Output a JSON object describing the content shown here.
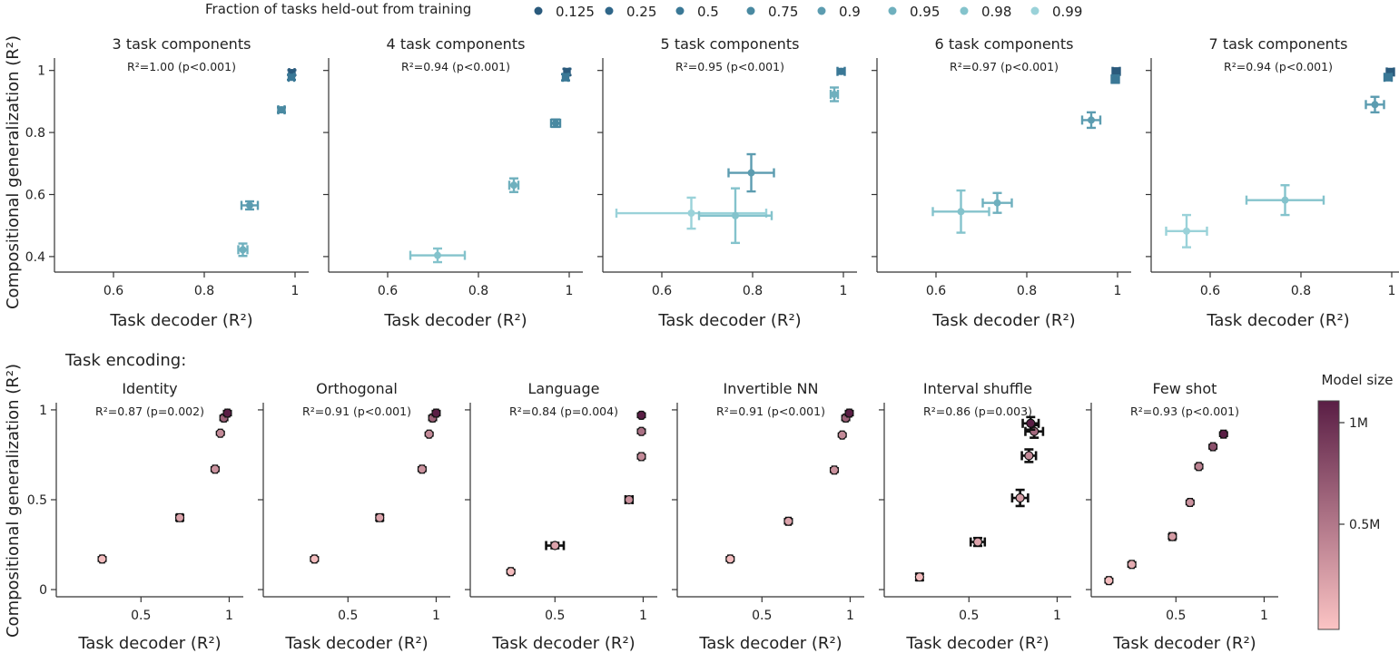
{
  "legend": {
    "title": "Fraction of tasks held-out from training",
    "items": [
      {
        "label": "0.125",
        "color": "#2a5a7c"
      },
      {
        "label": "0.25",
        "color": "#2f6689"
      },
      {
        "label": "0.5",
        "color": "#3a7896"
      },
      {
        "label": "0.75",
        "color": "#4989a1"
      },
      {
        "label": "0.9",
        "color": "#5c9cb0"
      },
      {
        "label": "0.95",
        "color": "#6fb0be"
      },
      {
        "label": "0.98",
        "color": "#84c3cc"
      },
      {
        "label": "0.99",
        "color": "#9ad2d9"
      }
    ]
  },
  "shared": {
    "xlabel": "Task decoder (R²)",
    "ylabel": "Compositional generalization (R²)"
  },
  "section_label": "Task encoding:",
  "colorbar": {
    "title": "Model size",
    "tick_1m": "1M",
    "tick_05m": "0.5M",
    "color_low": "#fcc4c4",
    "color_high": "#5a1e45"
  },
  "chart_data": [
    {
      "type": "scatter",
      "title": "3 task components",
      "annotation": "R²=1.00 (p<0.001)",
      "xlim": [
        0.47,
        1.03
      ],
      "ylim": [
        0.35,
        1.04
      ],
      "xticks": [
        0.6,
        0.8,
        1
      ],
      "xtick_labels": [
        "0.6",
        "0.8",
        "1"
      ],
      "yticks": [
        0.4,
        0.6,
        0.8,
        1
      ],
      "ytick_labels": [
        "0.4",
        "0.6",
        "0.8",
        "1"
      ],
      "points": [
        {
          "x": 0.993,
          "y": 0.993,
          "xerr": 0.006,
          "yerr": 0.008,
          "color": "#2a5a7c"
        },
        {
          "x": 0.992,
          "y": 0.978,
          "xerr": 0.006,
          "yerr": 0.008,
          "color": "#3a7896"
        },
        {
          "x": 0.97,
          "y": 0.873,
          "xerr": 0.007,
          "yerr": 0.008,
          "color": "#4989a1"
        },
        {
          "x": 0.9,
          "y": 0.565,
          "xerr": 0.018,
          "yerr": 0.013,
          "color": "#5c9cb0"
        },
        {
          "x": 0.885,
          "y": 0.422,
          "xerr": 0.01,
          "yerr": 0.02,
          "color": "#6fb0be"
        }
      ]
    },
    {
      "type": "scatter",
      "title": "4 task components",
      "annotation": "R²=0.94 (p<0.001)",
      "xlim": [
        0.47,
        1.03
      ],
      "ylim": [
        0.35,
        1.04
      ],
      "xticks": [
        0.6,
        0.8,
        1
      ],
      "xtick_labels": [
        "0.6",
        "0.8",
        "1"
      ],
      "yticks": [
        0.4,
        0.6,
        0.8,
        1
      ],
      "ytick_labels": [
        "0.4",
        "0.6",
        "0.8",
        "1"
      ],
      "points": [
        {
          "x": 0.995,
          "y": 0.995,
          "xerr": 0.006,
          "yerr": 0.01,
          "color": "#2a5a7c"
        },
        {
          "x": 0.992,
          "y": 0.978,
          "xerr": 0.006,
          "yerr": 0.01,
          "color": "#3a7896"
        },
        {
          "x": 0.97,
          "y": 0.83,
          "xerr": 0.01,
          "yerr": 0.012,
          "color": "#4989a1"
        },
        {
          "x": 0.878,
          "y": 0.63,
          "xerr": 0.01,
          "yerr": 0.022,
          "color": "#6fb0be"
        },
        {
          "x": 0.71,
          "y": 0.404,
          "xerr": 0.06,
          "yerr": 0.022,
          "color": "#84c3cc"
        }
      ]
    },
    {
      "type": "scatter",
      "title": "5 task components",
      "annotation": "R²=0.95 (p<0.001)",
      "xlim": [
        0.47,
        1.03
      ],
      "ylim": [
        0.35,
        1.04
      ],
      "xticks": [
        0.6,
        0.8,
        1
      ],
      "xtick_labels": [
        "0.6",
        "0.8",
        "1"
      ],
      "yticks": [
        0.4,
        0.6,
        0.8,
        1
      ],
      "ytick_labels": [
        "0.4",
        "0.6",
        "0.8",
        "1"
      ],
      "points": [
        {
          "x": 0.995,
          "y": 0.997,
          "xerr": 0.008,
          "yerr": 0.008,
          "color": "#3a7896"
        },
        {
          "x": 0.98,
          "y": 0.923,
          "xerr": 0.008,
          "yerr": 0.022,
          "color": "#6fb0be"
        },
        {
          "x": 0.797,
          "y": 0.67,
          "xerr": 0.05,
          "yerr": 0.06,
          "color": "#5c9cb0"
        },
        {
          "x": 0.665,
          "y": 0.54,
          "xerr": 0.165,
          "yerr": 0.05,
          "color": "#9ad2d9"
        },
        {
          "x": 0.762,
          "y": 0.532,
          "xerr": 0.08,
          "yerr": 0.088,
          "color": "#84c3cc"
        }
      ]
    },
    {
      "type": "scatter",
      "title": "6 task components",
      "annotation": "R²=0.97 (p<0.001)",
      "xlim": [
        0.47,
        1.03
      ],
      "ylim": [
        0.35,
        1.04
      ],
      "xticks": [
        0.6,
        0.8,
        1
      ],
      "xtick_labels": [
        "0.6",
        "0.8",
        "1"
      ],
      "yticks": [
        0.4,
        0.6,
        0.8,
        1
      ],
      "ytick_labels": [
        "0.4",
        "0.6",
        "0.8",
        "1"
      ],
      "points": [
        {
          "x": 0.997,
          "y": 0.997,
          "xerr": 0.008,
          "yerr": 0.01,
          "color": "#2a5a7c"
        },
        {
          "x": 0.995,
          "y": 0.972,
          "xerr": 0.008,
          "yerr": 0.012,
          "color": "#3a7896"
        },
        {
          "x": 0.942,
          "y": 0.84,
          "xerr": 0.02,
          "yerr": 0.025,
          "color": "#5c9cb0"
        },
        {
          "x": 0.735,
          "y": 0.573,
          "xerr": 0.032,
          "yerr": 0.032,
          "color": "#6fb0be"
        },
        {
          "x": 0.655,
          "y": 0.545,
          "xerr": 0.062,
          "yerr": 0.068,
          "color": "#84c3cc"
        }
      ]
    },
    {
      "type": "scatter",
      "title": "7 task components",
      "annotation": "R²=0.94 (p<0.001)",
      "xlim": [
        0.47,
        1.03
      ],
      "ylim": [
        0.35,
        1.04
      ],
      "xticks": [
        0.6,
        0.8,
        1
      ],
      "xtick_labels": [
        "0.6",
        "0.8",
        "1"
      ],
      "yticks": [
        0.4,
        0.6,
        0.8,
        1
      ],
      "ytick_labels": [
        "0.4",
        "0.6",
        "0.8",
        "1"
      ],
      "points": [
        {
          "x": 0.997,
          "y": 0.995,
          "xerr": 0.008,
          "yerr": 0.01,
          "color": "#2a5a7c"
        },
        {
          "x": 0.992,
          "y": 0.978,
          "xerr": 0.008,
          "yerr": 0.01,
          "color": "#3a7896"
        },
        {
          "x": 0.963,
          "y": 0.89,
          "xerr": 0.02,
          "yerr": 0.025,
          "color": "#5c9cb0"
        },
        {
          "x": 0.765,
          "y": 0.582,
          "xerr": 0.085,
          "yerr": 0.048,
          "color": "#84c3cc"
        },
        {
          "x": 0.548,
          "y": 0.482,
          "xerr": 0.045,
          "yerr": 0.052,
          "color": "#9ad2d9"
        }
      ]
    },
    {
      "type": "scatter",
      "title": "Identity",
      "annotation": "R²=0.87 (p=0.002)",
      "xlim": [
        0.02,
        1.08
      ],
      "ylim": [
        -0.04,
        1.04
      ],
      "xticks": [
        0.5,
        1
      ],
      "xtick_labels": [
        "0.5",
        "1"
      ],
      "yticks": [
        0,
        0.5,
        1
      ],
      "ytick_labels": [
        "0",
        "0.5",
        "1"
      ],
      "points": [
        {
          "x": 0.28,
          "y": 0.17,
          "xerr": 0.01,
          "yerr": 0.01,
          "size": 0.05
        },
        {
          "x": 0.72,
          "y": 0.4,
          "xerr": 0.015,
          "yerr": 0.015,
          "size": 0.2
        },
        {
          "x": 0.92,
          "y": 0.67,
          "xerr": 0.01,
          "yerr": 0.01,
          "size": 0.3
        },
        {
          "x": 0.95,
          "y": 0.87,
          "xerr": 0.008,
          "yerr": 0.008,
          "size": 0.35
        },
        {
          "x": 0.97,
          "y": 0.955,
          "xerr": 0.01,
          "yerr": 0.012,
          "size": 0.6
        },
        {
          "x": 0.99,
          "y": 0.982,
          "xerr": 0.01,
          "yerr": 0.012,
          "size": 1.0
        }
      ]
    },
    {
      "type": "scatter",
      "title": "Orthogonal",
      "annotation": "R²=0.91 (p<0.001)",
      "xlim": [
        0.02,
        1.08
      ],
      "ylim": [
        -0.04,
        1.04
      ],
      "xticks": [
        0.5,
        1
      ],
      "xtick_labels": [
        "0.5",
        "1"
      ],
      "yticks": [
        0,
        0.5,
        1
      ],
      "ytick_labels": [
        "0",
        "0.5",
        "1"
      ],
      "points": [
        {
          "x": 0.31,
          "y": 0.17,
          "xerr": 0.01,
          "yerr": 0.01,
          "size": 0.05
        },
        {
          "x": 0.68,
          "y": 0.4,
          "xerr": 0.015,
          "yerr": 0.015,
          "size": 0.2
        },
        {
          "x": 0.92,
          "y": 0.67,
          "xerr": 0.01,
          "yerr": 0.01,
          "size": 0.3
        },
        {
          "x": 0.96,
          "y": 0.865,
          "xerr": 0.008,
          "yerr": 0.008,
          "size": 0.35
        },
        {
          "x": 0.98,
          "y": 0.955,
          "xerr": 0.01,
          "yerr": 0.012,
          "size": 0.6
        },
        {
          "x": 1.0,
          "y": 0.982,
          "xerr": 0.01,
          "yerr": 0.012,
          "size": 1.0
        }
      ]
    },
    {
      "type": "scatter",
      "title": "Language",
      "annotation": "R²=0.84 (p=0.004)",
      "xlim": [
        0.02,
        1.08
      ],
      "ylim": [
        -0.04,
        1.04
      ],
      "xticks": [
        0.5,
        1
      ],
      "xtick_labels": [
        "0.5",
        "1"
      ],
      "yticks": [
        0,
        0.5,
        1
      ],
      "ytick_labels": [
        "0",
        "0.5",
        "1"
      ],
      "points": [
        {
          "x": 0.25,
          "y": 0.1,
          "xerr": 0.01,
          "yerr": 0.01,
          "size": 0.05
        },
        {
          "x": 0.5,
          "y": 0.245,
          "xerr": 0.05,
          "yerr": 0.015,
          "size": 0.2
        },
        {
          "x": 0.92,
          "y": 0.5,
          "xerr": 0.02,
          "yerr": 0.015,
          "size": 0.3
        },
        {
          "x": 0.99,
          "y": 0.74,
          "xerr": 0.01,
          "yerr": 0.01,
          "size": 0.35
        },
        {
          "x": 0.99,
          "y": 0.88,
          "xerr": 0.008,
          "yerr": 0.01,
          "size": 0.5
        },
        {
          "x": 0.99,
          "y": 0.97,
          "xerr": 0.008,
          "yerr": 0.01,
          "size": 1.0
        }
      ]
    },
    {
      "type": "scatter",
      "title": "Invertible NN",
      "annotation": "R²=0.91 (p<0.001)",
      "xlim": [
        0.02,
        1.08
      ],
      "ylim": [
        -0.04,
        1.04
      ],
      "xticks": [
        0.5,
        1
      ],
      "xtick_labels": [
        "0.5",
        "1"
      ],
      "yticks": [
        0,
        0.5,
        1
      ],
      "ytick_labels": [
        "0",
        "0.5",
        "1"
      ],
      "points": [
        {
          "x": 0.32,
          "y": 0.17,
          "xerr": 0.01,
          "yerr": 0.01,
          "size": 0.05
        },
        {
          "x": 0.65,
          "y": 0.38,
          "xerr": 0.012,
          "yerr": 0.012,
          "size": 0.2
        },
        {
          "x": 0.91,
          "y": 0.665,
          "xerr": 0.01,
          "yerr": 0.01,
          "size": 0.3
        },
        {
          "x": 0.955,
          "y": 0.86,
          "xerr": 0.008,
          "yerr": 0.008,
          "size": 0.35
        },
        {
          "x": 0.975,
          "y": 0.955,
          "xerr": 0.01,
          "yerr": 0.012,
          "size": 0.6
        },
        {
          "x": 0.995,
          "y": 0.982,
          "xerr": 0.01,
          "yerr": 0.012,
          "size": 1.0
        }
      ]
    },
    {
      "type": "scatter",
      "title": "Interval shuffle",
      "annotation": "R²=0.86 (p=0.003)",
      "xlim": [
        0.02,
        1.08
      ],
      "ylim": [
        -0.04,
        1.04
      ],
      "xticks": [
        0.5,
        1
      ],
      "xtick_labels": [
        "0.5",
        "1"
      ],
      "yticks": [
        0,
        0.5,
        1
      ],
      "ytick_labels": [
        "0",
        "0.5",
        "1"
      ],
      "points": [
        {
          "x": 0.22,
          "y": 0.07,
          "xerr": 0.015,
          "yerr": 0.018,
          "size": 0.05
        },
        {
          "x": 0.55,
          "y": 0.265,
          "xerr": 0.04,
          "yerr": 0.022,
          "size": 0.2
        },
        {
          "x": 0.79,
          "y": 0.51,
          "xerr": 0.045,
          "yerr": 0.045,
          "size": 0.25
        },
        {
          "x": 0.84,
          "y": 0.745,
          "xerr": 0.04,
          "yerr": 0.035,
          "size": 0.35
        },
        {
          "x": 0.87,
          "y": 0.88,
          "xerr": 0.05,
          "yerr": 0.035,
          "size": 0.55
        },
        {
          "x": 0.85,
          "y": 0.925,
          "xerr": 0.045,
          "yerr": 0.035,
          "size": 1.0
        }
      ]
    },
    {
      "type": "scatter",
      "title": "Few shot",
      "annotation": "R²=0.93 (p<0.001)",
      "xlim": [
        0.02,
        1.08
      ],
      "ylim": [
        -0.04,
        1.04
      ],
      "xticks": [
        0.5,
        1
      ],
      "xtick_labels": [
        "0.5",
        "1"
      ],
      "yticks": [
        0,
        0.5,
        1
      ],
      "ytick_labels": [
        "0",
        "0.5",
        "1"
      ],
      "points": [
        {
          "x": 0.12,
          "y": 0.05,
          "xerr": 0.01,
          "yerr": 0.01,
          "size": 0.05
        },
        {
          "x": 0.25,
          "y": 0.14,
          "xerr": 0.01,
          "yerr": 0.012,
          "size": 0.15
        },
        {
          "x": 0.48,
          "y": 0.295,
          "xerr": 0.015,
          "yerr": 0.012,
          "size": 0.25
        },
        {
          "x": 0.58,
          "y": 0.485,
          "xerr": 0.01,
          "yerr": 0.01,
          "size": 0.3
        },
        {
          "x": 0.63,
          "y": 0.685,
          "xerr": 0.01,
          "yerr": 0.01,
          "size": 0.4
        },
        {
          "x": 0.71,
          "y": 0.795,
          "xerr": 0.01,
          "yerr": 0.01,
          "size": 0.7
        },
        {
          "x": 0.77,
          "y": 0.865,
          "xerr": 0.012,
          "yerr": 0.01,
          "size": 1.0
        }
      ]
    }
  ]
}
